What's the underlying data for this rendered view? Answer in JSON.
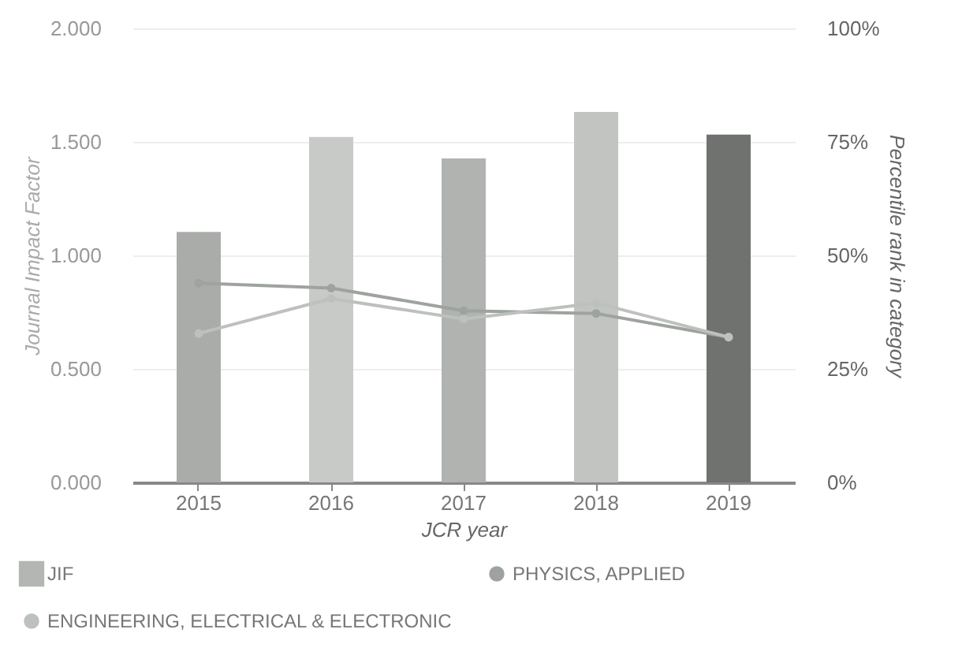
{
  "chart_data": {
    "type": "bar",
    "xlabel": "JCR year",
    "ylabel": "Journal Impact Factor",
    "y2label": "Percentile rank in category",
    "categories": [
      "2015",
      "2016",
      "2017",
      "2018",
      "2019"
    ],
    "series": [
      {
        "name": "JIF",
        "color": "#b3b6b3",
        "colors": [
          "#a9aca9",
          "#c8cac8",
          "#b0b3b0",
          "#c2c4c2",
          "#6f726f"
        ],
        "values": [
          1.103,
          1.522,
          1.427,
          1.632,
          1.532
        ]
      },
      {
        "name": "PHYSICS, APPLIED",
        "type": "line",
        "axis": "y2",
        "color": "#9ea39e",
        "values": [
          43.9,
          42.8,
          37.8,
          37.2,
          32
        ]
      },
      {
        "name": "ENGINEERING, ELECTRICAL & ELECTRONIC",
        "type": "line",
        "axis": "y2",
        "color": "#bdc1bd",
        "values": [
          32.8,
          40.5,
          36,
          39.5,
          32
        ]
      }
    ],
    "ylim": [
      0,
      2
    ],
    "yticks": [
      {
        "value": 0,
        "label": "0.000"
      },
      {
        "value": 0.5,
        "label": "0.500"
      },
      {
        "value": 1,
        "label": "1.000"
      },
      {
        "value": 1.5,
        "label": "1.500"
      },
      {
        "value": 2,
        "label": "2.000"
      }
    ],
    "y2lim": [
      0,
      100
    ],
    "y2ticks": [
      {
        "value": 0,
        "label": "0%"
      },
      {
        "value": 25,
        "label": "25%"
      },
      {
        "value": 50,
        "label": "50%"
      },
      {
        "value": 75,
        "label": "75%"
      },
      {
        "value": 100,
        "label": "100%"
      }
    ],
    "grid": "y",
    "legend": "bottom left",
    "marker": "circle",
    "line_style": "solid"
  }
}
